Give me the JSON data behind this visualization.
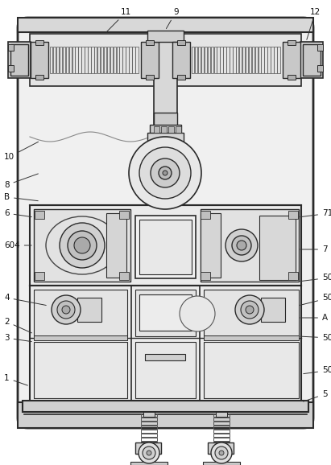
{
  "figsize": [
    4.11,
    5.78
  ],
  "dpi": 100,
  "lc": "#2a2a2a",
  "bg": "#f8f8f8"
}
